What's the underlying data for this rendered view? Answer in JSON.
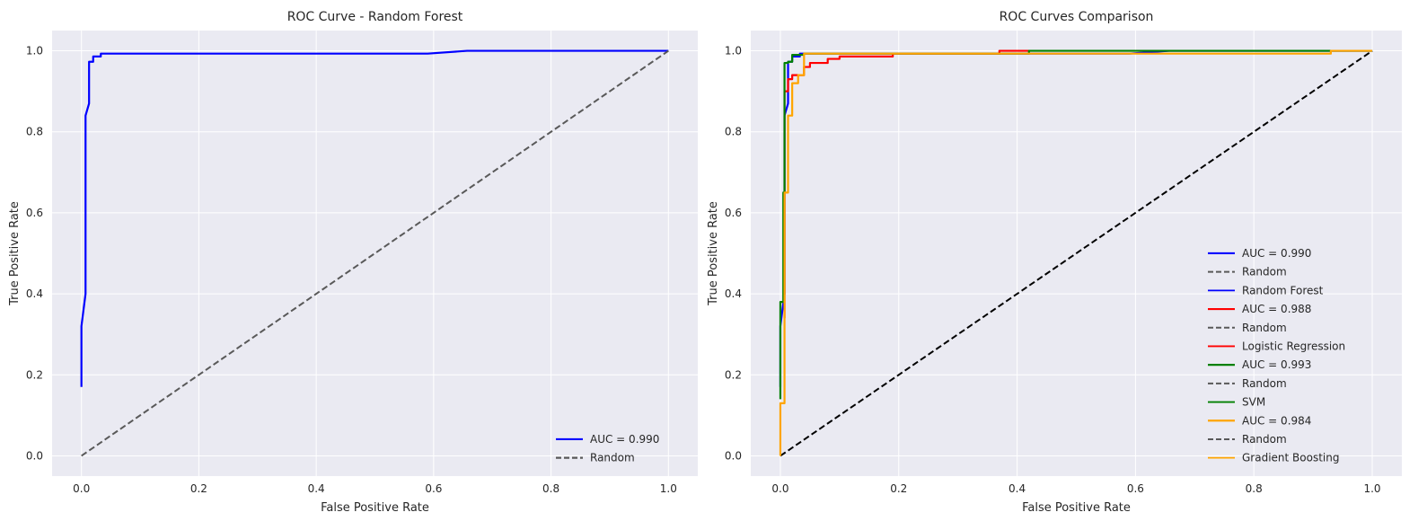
{
  "chart_data": [
    {
      "type": "line",
      "title": "ROC Curve - Random Forest",
      "xlabel": "False Positive Rate",
      "ylabel": "True Positive Rate",
      "xlim": [
        -0.05,
        1.05
      ],
      "ylim": [
        -0.05,
        1.05
      ],
      "xticks": [
        "0.0",
        "0.2",
        "0.4",
        "0.6",
        "0.8",
        "1.0"
      ],
      "yticks": [
        "0.0",
        "0.2",
        "0.4",
        "0.6",
        "0.8",
        "1.0"
      ],
      "grid": true,
      "legend_position": "lower-right",
      "series": [
        {
          "name": "AUC = 0.990",
          "color": "#0000ff",
          "style": "solid",
          "points": [
            [
              0,
              0.17
            ],
            [
              0,
              0.32
            ],
            [
              0.007,
              0.4
            ],
            [
              0.007,
              0.84
            ],
            [
              0.013,
              0.87
            ],
            [
              0.013,
              0.973
            ],
            [
              0.02,
              0.973
            ],
            [
              0.02,
              0.986
            ],
            [
              0.033,
              0.986
            ],
            [
              0.033,
              0.993
            ],
            [
              0.59,
              0.993
            ],
            [
              0.657,
              1.0
            ],
            [
              1.0,
              1.0
            ]
          ]
        },
        {
          "name": "Random",
          "color": "#595959",
          "style": "dashed",
          "points": [
            [
              0,
              0
            ],
            [
              1,
              1
            ]
          ]
        }
      ]
    },
    {
      "type": "line",
      "title": "ROC Curves Comparison",
      "xlabel": "False Positive Rate",
      "ylabel": "True Positive Rate",
      "xlim": [
        -0.05,
        1.05
      ],
      "ylim": [
        -0.05,
        1.05
      ],
      "xticks": [
        "0.0",
        "0.2",
        "0.4",
        "0.6",
        "0.8",
        "1.0"
      ],
      "yticks": [
        "0.0",
        "0.2",
        "0.4",
        "0.6",
        "0.8",
        "1.0"
      ],
      "grid": true,
      "legend_position": "lower-right",
      "series": [
        {
          "name": "Random",
          "color": "#000000",
          "style": "dashed",
          "in_legend": false,
          "points": [
            [
              0,
              0
            ],
            [
              1,
              1
            ]
          ]
        },
        {
          "name": "Random Forest",
          "color": "#0000ff",
          "style": "solid",
          "points": [
            [
              0,
              0.17
            ],
            [
              0,
              0.32
            ],
            [
              0.007,
              0.4
            ],
            [
              0.007,
              0.84
            ],
            [
              0.013,
              0.87
            ],
            [
              0.013,
              0.973
            ],
            [
              0.02,
              0.973
            ],
            [
              0.02,
              0.986
            ],
            [
              0.033,
              0.986
            ],
            [
              0.033,
              0.993
            ],
            [
              0.59,
              0.993
            ],
            [
              0.657,
              1.0
            ],
            [
              1.0,
              1.0
            ]
          ]
        },
        {
          "name": "Logistic Regression",
          "color": "#ff0000",
          "style": "solid",
          "points": [
            [
              0.007,
              0.34
            ],
            [
              0.007,
              0.9
            ],
            [
              0.013,
              0.9
            ],
            [
              0.013,
              0.93
            ],
            [
              0.02,
              0.93
            ],
            [
              0.02,
              0.94
            ],
            [
              0.04,
              0.94
            ],
            [
              0.04,
              0.96
            ],
            [
              0.05,
              0.96
            ],
            [
              0.05,
              0.97
            ],
            [
              0.08,
              0.97
            ],
            [
              0.08,
              0.98
            ],
            [
              0.1,
              0.98
            ],
            [
              0.1,
              0.986
            ],
            [
              0.19,
              0.986
            ],
            [
              0.19,
              0.993
            ],
            [
              0.37,
              0.993
            ],
            [
              0.37,
              1.0
            ],
            [
              0.42,
              1.0
            ]
          ]
        },
        {
          "name": "SVM",
          "color": "#008000",
          "style": "solid",
          "points": [
            [
              0,
              0.14
            ],
            [
              0,
              0.38
            ],
            [
              0.005,
              0.38
            ],
            [
              0.005,
              0.65
            ],
            [
              0.007,
              0.65
            ],
            [
              0.007,
              0.97
            ],
            [
              0.013,
              0.97
            ],
            [
              0.013,
              0.973
            ],
            [
              0.02,
              0.973
            ],
            [
              0.02,
              0.99
            ],
            [
              0.04,
              0.99
            ],
            [
              0.04,
              0.993
            ],
            [
              0.42,
              0.993
            ],
            [
              0.42,
              1.0
            ],
            [
              1.0,
              1.0
            ]
          ]
        },
        {
          "name": "Gradient Boosting",
          "color": "#ffa500",
          "style": "solid",
          "points": [
            [
              0,
              0
            ],
            [
              0,
              0.13
            ],
            [
              0.007,
              0.13
            ],
            [
              0.007,
              0.65
            ],
            [
              0.013,
              0.65
            ],
            [
              0.013,
              0.84
            ],
            [
              0.02,
              0.84
            ],
            [
              0.02,
              0.92
            ],
            [
              0.03,
              0.92
            ],
            [
              0.03,
              0.94
            ],
            [
              0.04,
              0.94
            ],
            [
              0.04,
              0.993
            ],
            [
              0.93,
              0.993
            ],
            [
              0.93,
              1.0
            ],
            [
              1.0,
              1.0
            ]
          ]
        }
      ],
      "legend_entries": [
        {
          "label": "AUC = 0.990",
          "color": "#0000ff",
          "style": "solid",
          "lw": 2.2
        },
        {
          "label": "Random",
          "color": "#595959",
          "style": "dashed",
          "lw": 2
        },
        {
          "label": "Random Forest",
          "color": "#0000ff",
          "style": "solid",
          "lw": 1.8
        },
        {
          "label": "AUC = 0.988",
          "color": "#ff0000",
          "style": "solid",
          "lw": 2.2
        },
        {
          "label": "Random",
          "color": "#595959",
          "style": "dashed",
          "lw": 2
        },
        {
          "label": "Logistic Regression",
          "color": "#ff0000",
          "style": "solid",
          "lw": 1.8
        },
        {
          "label": "AUC = 0.993",
          "color": "#008000",
          "style": "solid",
          "lw": 2.2
        },
        {
          "label": "Random",
          "color": "#595959",
          "style": "dashed",
          "lw": 2
        },
        {
          "label": "SVM",
          "color": "#008000",
          "style": "solid",
          "lw": 1.8
        },
        {
          "label": "AUC = 0.984",
          "color": "#ffa500",
          "style": "solid",
          "lw": 2.2
        },
        {
          "label": "Random",
          "color": "#595959",
          "style": "dashed",
          "lw": 2
        },
        {
          "label": "Gradient Boosting",
          "color": "#ffa500",
          "style": "solid",
          "lw": 1.8
        }
      ]
    }
  ],
  "colors": {
    "axes_bg": "#eaeaf2",
    "grid": "#ffffff",
    "text": "#262626"
  }
}
